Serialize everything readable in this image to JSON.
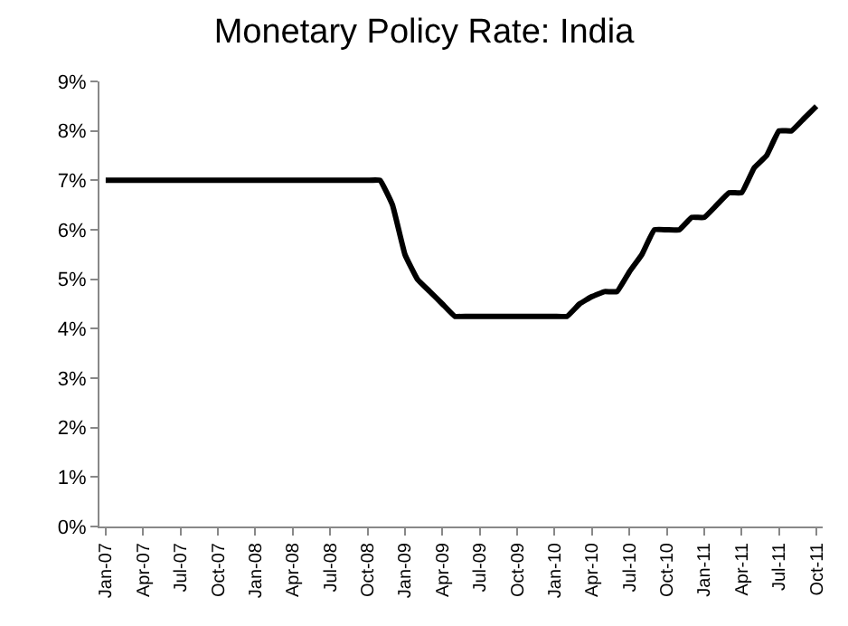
{
  "chart_data": {
    "type": "line",
    "title": "Monetary Policy Rate: India",
    "categories": [
      "Jan-07",
      null,
      null,
      "Apr-07",
      null,
      null,
      "Jul-07",
      null,
      null,
      "Oct-07",
      null,
      null,
      "Jan-08",
      null,
      null,
      "Apr-08",
      null,
      null,
      "Jul-08",
      null,
      null,
      "Oct-08",
      null,
      null,
      "Jan-09",
      null,
      null,
      "Apr-09",
      null,
      null,
      "Jul-09",
      null,
      null,
      "Oct-09",
      null,
      null,
      "Jan-10",
      null,
      null,
      "Apr-10",
      null,
      null,
      "Jul-10",
      null,
      null,
      "Oct-10",
      null,
      null,
      "Jan-11",
      null,
      null,
      "Apr-11",
      null,
      null,
      "Jul-11",
      null,
      null,
      "Oct-11"
    ],
    "series": [
      {
        "color": "#000000",
        "values": [
          7,
          7,
          7,
          7,
          7,
          7,
          7,
          7,
          7,
          7,
          7,
          7,
          7,
          7,
          7,
          7,
          7,
          7,
          7,
          7,
          7,
          7,
          7,
          6.5,
          5.5,
          5.0,
          4.75,
          4.5,
          4.25,
          4.25,
          4.25,
          4.25,
          4.25,
          4.25,
          4.25,
          4.25,
          4.25,
          4.25,
          4.5,
          4.65,
          4.75,
          4.75,
          5.15,
          5.5,
          6,
          6,
          6,
          6.25,
          6.25,
          6.5,
          6.75,
          6.75,
          7.25,
          7.5,
          8,
          8,
          8.25,
          8.5
        ]
      }
    ],
    "ylim": [
      0,
      9
    ],
    "yticks": [
      {
        "value": 0,
        "label": "0%"
      },
      {
        "value": 1,
        "label": "1%"
      },
      {
        "value": 2,
        "label": "2%"
      },
      {
        "value": 3,
        "label": "3%"
      },
      {
        "value": 4,
        "label": "4%"
      },
      {
        "value": 5,
        "label": "5%"
      },
      {
        "value": 6,
        "label": "6%"
      },
      {
        "value": 7,
        "label": "7%"
      },
      {
        "value": 8,
        "label": "8%"
      },
      {
        "value": 9,
        "label": "9%"
      }
    ],
    "marker": "none",
    "line_style": "solid"
  }
}
